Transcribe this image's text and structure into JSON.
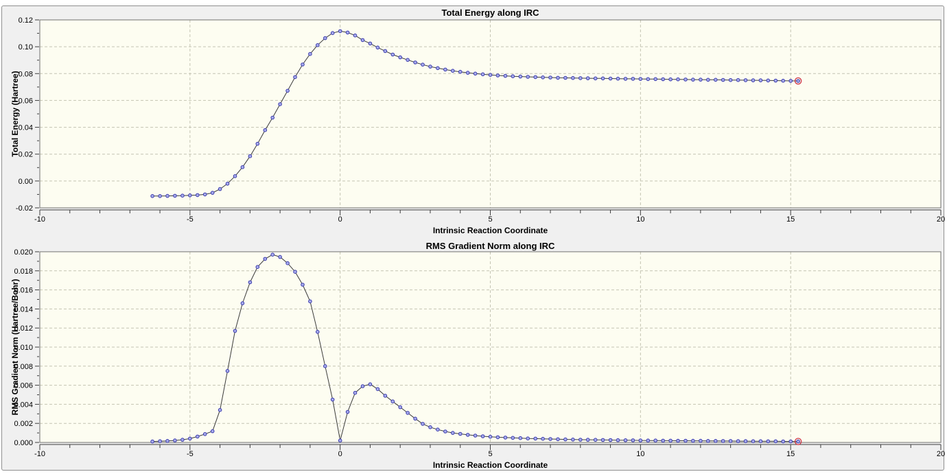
{
  "window": {
    "background": "#ffffff",
    "panel_background": "#f0f0f0",
    "panel_border": "#8f8f8f"
  },
  "colors": {
    "plot_background": "#fdfdf1",
    "grid": "#c4c4b2",
    "plot_border": "#707070",
    "tick": "#3c3c3c",
    "line": "#3a3a3a",
    "marker_fill": "#a8aceb",
    "marker_stroke": "#3b3bae",
    "endpoint_ring": "#cf3545",
    "text": "#000000"
  },
  "chart_data": [
    {
      "type": "line",
      "title": "Total Energy along IRC",
      "xlabel": "Intrinsic Reaction Coordinate",
      "ylabel": "Total Energy (Hartree)",
      "xlim": [
        -10,
        20
      ],
      "ylim": [
        -0.02,
        0.12
      ],
      "xticks": [
        -10,
        -5,
        0,
        5,
        10,
        15,
        20
      ],
      "x_minor_step": 1,
      "yticks": [
        -0.02,
        0,
        0.02,
        0.04,
        0.06,
        0.08,
        0.1,
        0.12
      ],
      "y_minor_step": 0.01,
      "ytick_decimals": 2,
      "grid": true,
      "legend": null,
      "marker": "circle",
      "highlight_last_point": true,
      "x": [
        -6.25,
        -6,
        -5.75,
        -5.5,
        -5.25,
        -5,
        -4.75,
        -4.5,
        -4.25,
        -4,
        -3.75,
        -3.5,
        -3.25,
        -3,
        -2.75,
        -2.5,
        -2.25,
        -2,
        -1.75,
        -1.5,
        -1.25,
        -1,
        -0.75,
        -0.5,
        -0.25,
        0,
        0.25,
        0.5,
        0.75,
        1,
        1.25,
        1.5,
        1.75,
        2,
        2.25,
        2.5,
        2.75,
        3,
        3.25,
        3.5,
        3.75,
        4,
        4.25,
        4.5,
        4.75,
        5,
        5.25,
        5.5,
        5.75,
        6,
        6.25,
        6.5,
        6.75,
        7,
        7.25,
        7.5,
        7.75,
        8,
        8.25,
        8.5,
        8.75,
        9,
        9.25,
        9.5,
        9.75,
        10,
        10.25,
        10.5,
        10.75,
        11,
        11.25,
        11.5,
        11.75,
        12,
        12.25,
        12.5,
        12.75,
        13,
        13.25,
        13.5,
        13.75,
        14,
        14.25,
        14.5,
        14.75,
        15,
        15.25
      ],
      "y": [
        -0.0112,
        -0.0112,
        -0.0111,
        -0.011,
        -0.0109,
        -0.0107,
        -0.0105,
        -0.01,
        -0.0088,
        -0.006,
        -0.002,
        0.0036,
        0.0103,
        0.0185,
        0.0277,
        0.0379,
        0.0472,
        0.0572,
        0.0672,
        0.0774,
        0.0868,
        0.0946,
        0.1012,
        0.1064,
        0.1102,
        0.1116,
        0.1106,
        0.1084,
        0.105,
        0.1024,
        0.0994,
        0.0968,
        0.0942,
        0.0921,
        0.0902,
        0.0883,
        0.0867,
        0.0852,
        0.0841,
        0.083,
        0.0821,
        0.0813,
        0.0806,
        0.08,
        0.0795,
        0.079,
        0.0786,
        0.0783,
        0.078,
        0.0778,
        0.0776,
        0.0774,
        0.0772,
        0.0771,
        0.0769,
        0.0768,
        0.0767,
        0.0766,
        0.0765,
        0.0764,
        0.0764,
        0.0763,
        0.0762,
        0.0761,
        0.0761,
        0.076,
        0.0759,
        0.0759,
        0.0758,
        0.0757,
        0.0757,
        0.0756,
        0.0755,
        0.0755,
        0.0754,
        0.0754,
        0.0753,
        0.0752,
        0.0752,
        0.0751,
        0.075,
        0.075,
        0.0749,
        0.0748,
        0.0747,
        0.0746,
        0.0745
      ]
    },
    {
      "type": "line",
      "title": "RMS Gradient Norm along IRC",
      "xlabel": "Intrinsic Reaction Coordinate",
      "ylabel": "RMS Gradient Norm (Hartree/Bohr)",
      "xlim": [
        -10,
        20
      ],
      "ylim": [
        0,
        0.02
      ],
      "xticks": [
        -10,
        -5,
        0,
        5,
        10,
        15,
        20
      ],
      "x_minor_step": 1,
      "yticks": [
        0,
        0.002,
        0.004,
        0.006,
        0.008,
        0.01,
        0.012,
        0.014,
        0.016,
        0.018,
        0.02
      ],
      "y_minor_step": 0.001,
      "ytick_decimals": 3,
      "grid": true,
      "legend": null,
      "marker": "circle",
      "highlight_last_point": true,
      "x": [
        -6.25,
        -6,
        -5.75,
        -5.5,
        -5.25,
        -5,
        -4.75,
        -4.5,
        -4.25,
        -4,
        -3.75,
        -3.5,
        -3.25,
        -3,
        -2.75,
        -2.5,
        -2.25,
        -2,
        -1.75,
        -1.5,
        -1.25,
        -1,
        -0.75,
        -0.5,
        -0.25,
        0,
        0.25,
        0.5,
        0.75,
        1,
        1.25,
        1.5,
        1.75,
        2,
        2.25,
        2.5,
        2.75,
        3,
        3.25,
        3.5,
        3.75,
        4,
        4.25,
        4.5,
        4.75,
        5,
        5.25,
        5.5,
        5.75,
        6,
        6.25,
        6.5,
        6.75,
        7,
        7.25,
        7.5,
        7.75,
        8,
        8.25,
        8.5,
        8.75,
        9,
        9.25,
        9.5,
        9.75,
        10,
        10.25,
        10.5,
        10.75,
        11,
        11.25,
        11.5,
        11.75,
        12,
        12.25,
        12.5,
        12.75,
        13,
        13.25,
        13.5,
        13.75,
        14,
        14.25,
        14.5,
        14.75,
        15,
        15.25
      ],
      "y": [
        0.0001,
        0.00013,
        0.00016,
        0.00021,
        0.00028,
        0.0004,
        0.00062,
        0.00088,
        0.00118,
        0.0034,
        0.0075,
        0.0117,
        0.0146,
        0.0168,
        0.0184,
        0.01925,
        0.0197,
        0.01945,
        0.0188,
        0.0179,
        0.01655,
        0.0148,
        0.0116,
        0.008,
        0.0045,
        0.0002,
        0.0032,
        0.0052,
        0.0059,
        0.0061,
        0.0056,
        0.0049,
        0.0043,
        0.0037,
        0.0031,
        0.0025,
        0.00195,
        0.0016,
        0.00135,
        0.00115,
        0.001,
        0.0009,
        0.0008,
        0.00072,
        0.00065,
        0.0006,
        0.00055,
        0.00051,
        0.00048,
        0.00045,
        0.00042,
        0.0004,
        0.00038,
        0.00036,
        0.00034,
        0.00032,
        0.0003,
        0.00029,
        0.00028,
        0.00027,
        0.00026,
        0.00025,
        0.00024,
        0.00023,
        0.00022,
        0.00021,
        0.0002,
        0.0002,
        0.00019,
        0.00019,
        0.00018,
        0.00018,
        0.00017,
        0.00017,
        0.00016,
        0.00016,
        0.00015,
        0.00015,
        0.00014,
        0.00014,
        0.00013,
        0.00013,
        0.00012,
        0.00012,
        0.00011,
        0.00011,
        0.0001
      ]
    }
  ]
}
